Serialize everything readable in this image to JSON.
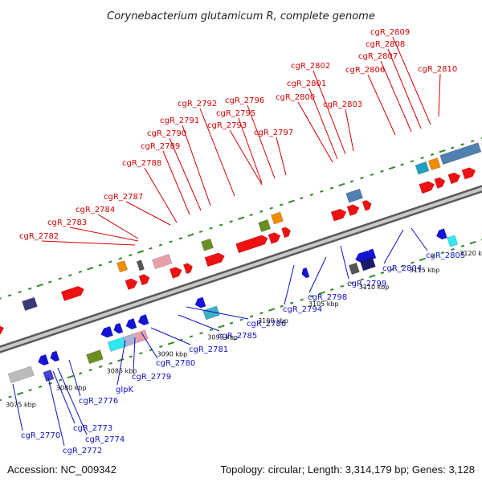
{
  "title": "Corynebacterium glutamicum R, complete genome",
  "accession": "Accession: NC_009342",
  "topology": "Topology: circular; Length: 3,314,179 bp; Genes: 3,128",
  "colors": {
    "forward_label": "#d40000",
    "reverse_label": "#1010c8",
    "forward_gene": "#ee1111",
    "reverse_gene": "#1414d8",
    "tick": "#2e8b22",
    "backbone": "#888888"
  },
  "scale_labels": [
    "3075 kbp",
    "3080 kbp",
    "3085 kbp",
    "3090 kbp",
    "3095 kbp",
    "3100 kbp",
    "3105 kbp",
    "3110 kbp",
    "3115 kbp",
    "3120 kbp"
  ],
  "forward_genes": [
    "cgR_2782",
    "cgR_2783",
    "cgR_2784",
    "cgR_2787",
    "cgR_2788",
    "cgR_2789",
    "cgR_2790",
    "cgR_2791",
    "cgR_2792",
    "cgR_2793",
    "cgR_2795",
    "cgR_2796",
    "cgR_2797",
    "cgR_2800",
    "cgR_2801",
    "cgR_2802",
    "cgR_2803",
    "cgR_2806",
    "cgR_2807",
    "cgR_2808",
    "cgR_2809",
    "cgR_2810"
  ],
  "reverse_genes": [
    "cgR_2770",
    "cgR_2772",
    "cgR_2773",
    "cgR_2774",
    "cgR_2776",
    "glpK",
    "cgR_2779",
    "cgR_2780",
    "cgR_2781",
    "cgR_2785",
    "cgR_2786",
    "cgR_2794",
    "cgR_2798",
    "cgR_2799",
    "cgR_2804",
    "cgR_2805"
  ]
}
